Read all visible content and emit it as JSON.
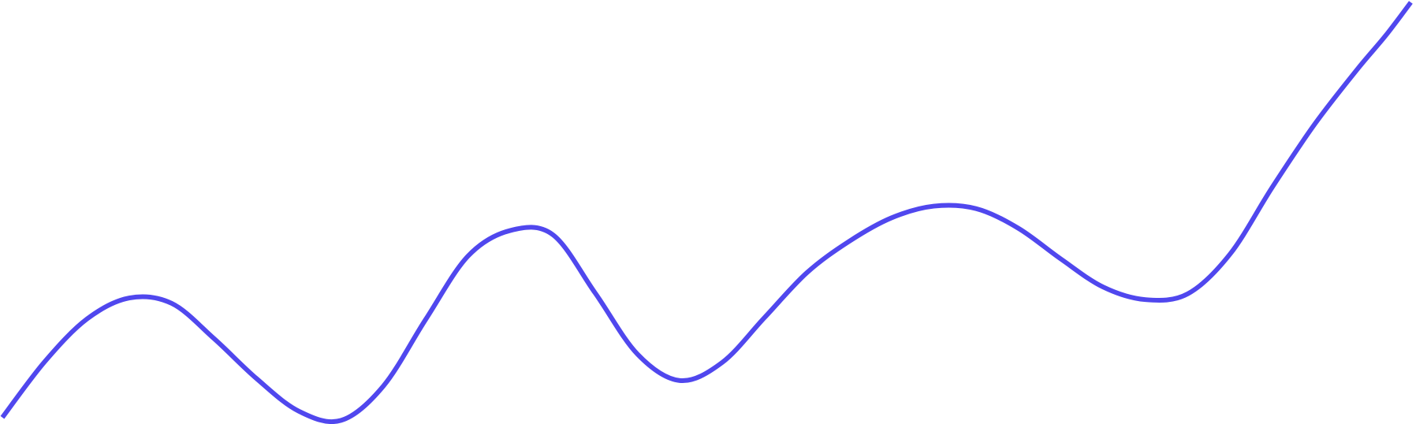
{
  "chart_data": {
    "type": "line",
    "title": "",
    "xlabel": "",
    "ylabel": "",
    "grid": false,
    "legend": "none",
    "axes_visible": false,
    "xlim": [
      0,
      100
    ],
    "ylim": [
      0,
      100
    ],
    "series": [
      {
        "color": "#5047ee",
        "x": [
          0,
          3,
          6,
          9,
          12,
          15,
          18,
          21,
          24,
          27,
          30,
          33,
          36,
          39,
          42,
          45,
          48,
          51,
          54,
          57,
          60,
          63,
          66,
          69,
          72,
          75,
          78,
          81,
          84,
          87,
          90,
          93,
          96,
          98,
          99.8
        ],
        "y": [
          1,
          14.3,
          24.5,
          29.5,
          28.2,
          19.8,
          10.3,
          2.5,
          0.3,
          8.5,
          24.4,
          39.5,
          45.6,
          44.6,
          30.7,
          16.1,
          9.8,
          14.1,
          24.8,
          35.5,
          43.0,
          48.6,
          51.4,
          50.8,
          46.1,
          38.8,
          32.1,
          29.1,
          30.5,
          40.0,
          56.0,
          71.0,
          84.0,
          92.0,
          100.0
        ]
      }
    ]
  }
}
